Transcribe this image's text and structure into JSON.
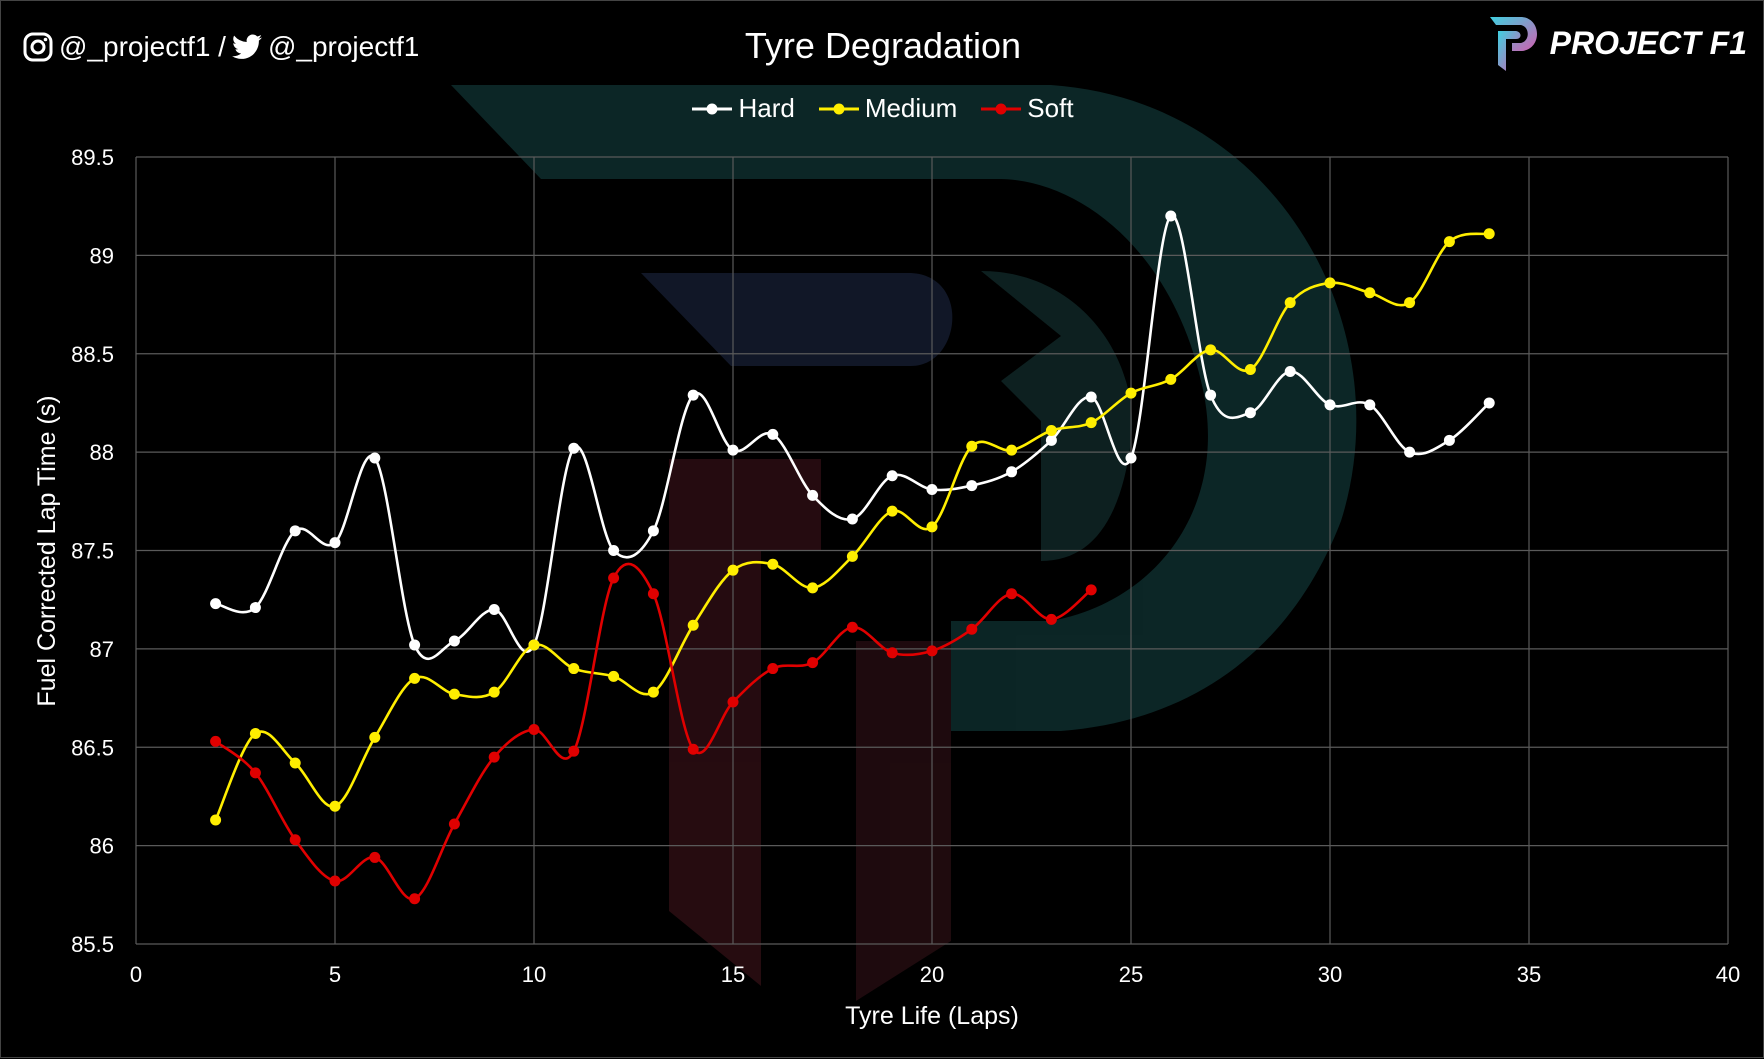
{
  "header": {
    "instagram_handle": "@_projectf1 /",
    "twitter_handle": "@_projectf1",
    "logo_text": "PROJECT F1"
  },
  "chart_data": {
    "type": "line",
    "title": "Tyre Degradation",
    "xlabel": "Tyre Life (Laps)",
    "ylabel": "Fuel Corrected Lap Time (s)",
    "xlim": [
      0,
      40
    ],
    "ylim": [
      85.5,
      89.5
    ],
    "xticks": [
      "0",
      "5",
      "10",
      "15",
      "20",
      "25",
      "30",
      "35",
      "40"
    ],
    "yticks": [
      "85.5",
      "86",
      "86.5",
      "87",
      "87.5",
      "88",
      "88.5",
      "89",
      "89.5"
    ],
    "grid": true,
    "smoothed": true,
    "legend_position": "top",
    "series": [
      {
        "name": "Hard",
        "color": "#ffffff",
        "x": [
          2,
          3,
          4,
          5,
          6,
          7,
          8,
          9,
          10,
          11,
          12,
          13,
          14,
          15,
          16,
          17,
          18,
          19,
          20,
          21,
          22,
          23,
          24,
          25,
          26,
          27,
          28,
          29,
          30,
          31,
          32,
          33,
          34
        ],
        "values": [
          87.23,
          87.21,
          87.6,
          87.54,
          87.97,
          87.02,
          87.04,
          87.2,
          87.02,
          88.02,
          87.5,
          87.6,
          88.29,
          88.01,
          88.09,
          87.78,
          87.66,
          87.88,
          87.81,
          87.83,
          87.9,
          88.06,
          88.28,
          87.97,
          89.2,
          88.29,
          88.2,
          88.41,
          88.24,
          88.24,
          88.0,
          88.06,
          88.25
        ]
      },
      {
        "name": "Medium",
        "color": "#ffee00",
        "x": [
          2,
          3,
          4,
          5,
          6,
          7,
          8,
          9,
          10,
          11,
          12,
          13,
          14,
          15,
          16,
          17,
          18,
          19,
          20,
          21,
          22,
          23,
          24,
          25,
          26,
          27,
          28,
          29,
          30,
          31,
          32,
          33,
          34
        ],
        "values": [
          86.13,
          86.57,
          86.42,
          86.2,
          86.55,
          86.85,
          86.77,
          86.78,
          87.02,
          86.9,
          86.86,
          86.78,
          87.12,
          87.4,
          87.43,
          87.31,
          87.47,
          87.7,
          87.62,
          88.03,
          88.01,
          88.11,
          88.15,
          88.3,
          88.37,
          88.52,
          88.42,
          88.76,
          88.86,
          88.81,
          88.76,
          89.07,
          89.11
        ]
      },
      {
        "name": "Soft",
        "color": "#e00000",
        "x": [
          2,
          3,
          4,
          5,
          6,
          7,
          8,
          9,
          10,
          11,
          12,
          13,
          14,
          15,
          16,
          17,
          18,
          19,
          20,
          21,
          22,
          23,
          24
        ],
        "values": [
          86.53,
          86.37,
          86.03,
          85.82,
          85.94,
          85.73,
          86.11,
          86.45,
          86.59,
          86.48,
          87.36,
          87.28,
          86.49,
          86.73,
          86.9,
          86.93,
          87.11,
          86.98,
          86.99,
          87.1,
          87.28,
          87.15,
          87.3
        ]
      }
    ]
  }
}
